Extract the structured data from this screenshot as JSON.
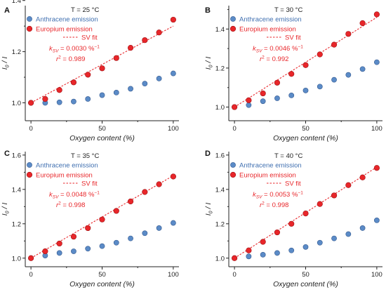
{
  "chart_data": [
    {
      "type": "scatter",
      "panel_label": "A",
      "x_ticks": [
        "0",
        "50",
        "100"
      ],
      "y_ticks": [
        "1.0",
        "1.2",
        "1.4"
      ],
      "xlim": [
        -4,
        104
      ],
      "ylim": [
        0.93,
        1.38
      ],
      "xlabel": "Oxygen content (%)",
      "ylabel": "I0 / I",
      "annotation": {
        "temperature": "T = 25 °C",
        "ksv_label": "ksv",
        "ksv_value": " = 0.0030 %",
        "ksv_exp": "−1",
        "r2_label": "r",
        "r2_exp": "2",
        "r2_value": " = 0.989"
      },
      "legend": [
        "Anthracene emission",
        "Europium emission",
        "SV fit"
      ],
      "series": [
        {
          "name": "Anthracene emission",
          "color": "#5b8bc7",
          "x": [
            0,
            10,
            20,
            30,
            40,
            50,
            60,
            70,
            80,
            90,
            100
          ],
          "y": [
            1.0,
            1.0,
            1.002,
            1.005,
            1.015,
            1.03,
            1.04,
            1.055,
            1.075,
            1.095,
            1.115
          ]
        },
        {
          "name": "Europium emission",
          "color": "#e8262a",
          "x": [
            0,
            10,
            20,
            30,
            40,
            50,
            60,
            70,
            80,
            90,
            100
          ],
          "y": [
            1.0,
            1.015,
            1.05,
            1.08,
            1.11,
            1.135,
            1.175,
            1.215,
            1.245,
            1.275,
            1.325
          ]
        },
        {
          "name": "SV fit",
          "color": "#e8262a",
          "x": [
            0,
            100
          ],
          "y": [
            1.0,
            1.3
          ]
        }
      ]
    },
    {
      "type": "scatter",
      "panel_label": "B",
      "x_ticks": [
        "0",
        "50",
        "100"
      ],
      "y_ticks": [
        "1.0",
        "1.2",
        "1.4"
      ],
      "xlim": [
        -4,
        104
      ],
      "ylim": [
        0.93,
        1.52
      ],
      "xlabel": "Oxygen content (%)",
      "ylabel": "I0 / I",
      "annotation": {
        "temperature": "T = 30 °C",
        "ksv_label": "ksv",
        "ksv_value": " = 0.0046 %",
        "ksv_exp": "−1",
        "r2_label": "r",
        "r2_exp": "2",
        "r2_value": " = 0.992"
      },
      "legend": [
        "Anthracene emission",
        "Europium emission",
        "SV fit"
      ],
      "series": [
        {
          "name": "Anthracene emission",
          "color": "#5b8bc7",
          "x": [
            0,
            10,
            20,
            30,
            40,
            50,
            60,
            70,
            80,
            90,
            100
          ],
          "y": [
            1.0,
            1.01,
            1.03,
            1.045,
            1.06,
            1.085,
            1.105,
            1.14,
            1.165,
            1.195,
            1.23
          ]
        },
        {
          "name": "Europium emission",
          "color": "#e8262a",
          "x": [
            0,
            10,
            20,
            30,
            40,
            50,
            60,
            70,
            80,
            90,
            100
          ],
          "y": [
            1.0,
            1.035,
            1.07,
            1.125,
            1.17,
            1.215,
            1.27,
            1.32,
            1.375,
            1.43,
            1.475
          ]
        },
        {
          "name": "SV fit",
          "color": "#e8262a",
          "x": [
            0,
            100
          ],
          "y": [
            1.0,
            1.46
          ]
        }
      ]
    },
    {
      "type": "scatter",
      "panel_label": "C",
      "x_ticks": [
        "0",
        "50",
        "100"
      ],
      "y_ticks": [
        "1.0",
        "1.2",
        "1.4",
        "1.6"
      ],
      "xlim": [
        -4,
        104
      ],
      "ylim": [
        0.95,
        1.62
      ],
      "xlabel": "Oxygen content (%)",
      "ylabel": "I0 / I",
      "annotation": {
        "temperature": "T = 35 °C",
        "ksv_label": "ksv",
        "ksv_value": " = 0.0048 %",
        "ksv_exp": "−1",
        "r2_label": "r",
        "r2_exp": "2",
        "r2_value": " = 0.998"
      },
      "legend": [
        "Anthracene emission",
        "Europium emission",
        "SV fit"
      ],
      "series": [
        {
          "name": "Anthracene emission",
          "color": "#5b8bc7",
          "x": [
            0,
            10,
            20,
            30,
            40,
            50,
            60,
            70,
            80,
            90,
            100
          ],
          "y": [
            1.0,
            1.015,
            1.03,
            1.04,
            1.055,
            1.07,
            1.09,
            1.115,
            1.145,
            1.175,
            1.205
          ]
        },
        {
          "name": "Europium emission",
          "color": "#e8262a",
          "x": [
            0,
            10,
            20,
            30,
            40,
            50,
            60,
            70,
            80,
            90,
            100
          ],
          "y": [
            1.0,
            1.04,
            1.085,
            1.125,
            1.175,
            1.225,
            1.275,
            1.33,
            1.385,
            1.43,
            1.475
          ]
        },
        {
          "name": "SV fit",
          "color": "#e8262a",
          "x": [
            0,
            100
          ],
          "y": [
            1.0,
            1.48
          ]
        }
      ]
    },
    {
      "type": "scatter",
      "panel_label": "D",
      "x_ticks": [
        "0",
        "50",
        "100"
      ],
      "y_ticks": [
        "1.0",
        "1.2",
        "1.4",
        "1.6"
      ],
      "xlim": [
        -4,
        104
      ],
      "ylim": [
        0.95,
        1.62
      ],
      "xlabel": "Oxygen content (%)",
      "ylabel": "I0 / I",
      "annotation": {
        "temperature": "T = 40 °C",
        "ksv_label": "ksv",
        "ksv_value": " = 0.0053 %",
        "ksv_exp": "−1",
        "r2_label": "r",
        "r2_exp": "2",
        "r2_value": " = 0.998"
      },
      "legend": [
        "Anthracene emission",
        "Europium emission",
        "SV fit"
      ],
      "series": [
        {
          "name": "Anthracene emission",
          "color": "#5b8bc7",
          "x": [
            0,
            10,
            20,
            30,
            40,
            50,
            60,
            70,
            80,
            90,
            100
          ],
          "y": [
            1.0,
            1.01,
            1.02,
            1.03,
            1.045,
            1.065,
            1.09,
            1.115,
            1.14,
            1.175,
            1.22
          ]
        },
        {
          "name": "Europium emission",
          "color": "#e8262a",
          "x": [
            0,
            10,
            20,
            30,
            40,
            50,
            60,
            70,
            80,
            90,
            100
          ],
          "y": [
            1.0,
            1.045,
            1.095,
            1.15,
            1.2,
            1.26,
            1.315,
            1.365,
            1.425,
            1.47,
            1.525
          ]
        },
        {
          "name": "SV fit",
          "color": "#e8262a",
          "x": [
            0,
            100
          ],
          "y": [
            1.0,
            1.53
          ]
        }
      ]
    }
  ]
}
